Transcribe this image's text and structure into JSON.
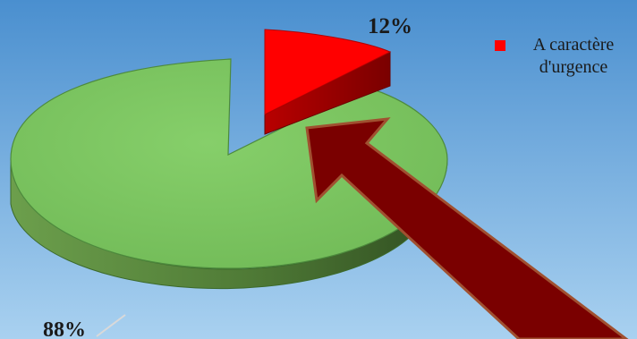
{
  "chart_data": {
    "type": "pie",
    "style": "3d-exploded",
    "slices": [
      {
        "label": "12%",
        "value": 12,
        "color": "#ff0000",
        "legend": "A caractère d'urgence"
      },
      {
        "label": "88%",
        "value": 88,
        "color": "#7ac560"
      }
    ],
    "legend_position": "top-right",
    "background": [
      "#4a8fcf",
      "#a9d1f0"
    ],
    "arrow_color": "#7a0000",
    "arrow_outline": "#a05030"
  }
}
